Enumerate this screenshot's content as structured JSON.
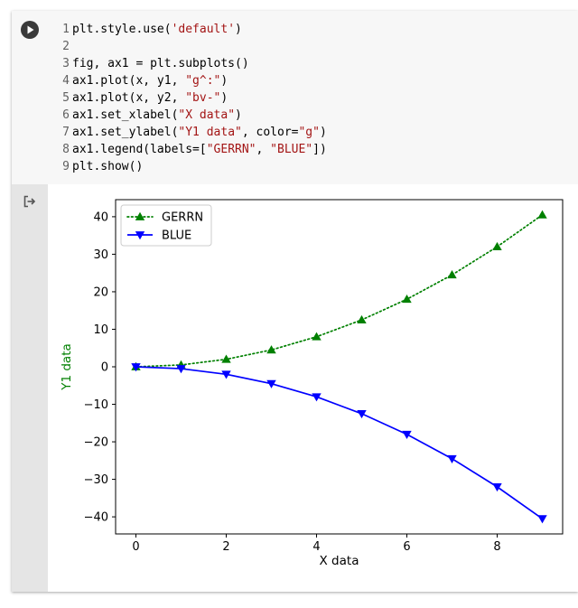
{
  "code": {
    "lines": [
      {
        "num": "1",
        "parts": [
          {
            "t": "plt.style.use(",
            "s": false
          },
          {
            "t": "'default'",
            "s": true
          },
          {
            "t": ")",
            "s": false
          }
        ]
      },
      {
        "num": "2",
        "parts": []
      },
      {
        "num": "3",
        "parts": [
          {
            "t": "fig, ax1 = plt.subplots()",
            "s": false
          }
        ]
      },
      {
        "num": "4",
        "parts": [
          {
            "t": "ax1.plot(x, y1, ",
            "s": false
          },
          {
            "t": "\"g^:\"",
            "s": true
          },
          {
            "t": ")",
            "s": false
          }
        ]
      },
      {
        "num": "5",
        "parts": [
          {
            "t": "ax1.plot(x, y2, ",
            "s": false
          },
          {
            "t": "\"bv-\"",
            "s": true
          },
          {
            "t": ")",
            "s": false
          }
        ]
      },
      {
        "num": "6",
        "parts": [
          {
            "t": "ax1.set_xlabel(",
            "s": false
          },
          {
            "t": "\"X data\"",
            "s": true
          },
          {
            "t": ")",
            "s": false
          }
        ]
      },
      {
        "num": "7",
        "parts": [
          {
            "t": "ax1.set_ylabel(",
            "s": false
          },
          {
            "t": "\"Y1 data\"",
            "s": true
          },
          {
            "t": ", color=",
            "s": false
          },
          {
            "t": "\"g\"",
            "s": true
          },
          {
            "t": ")",
            "s": false
          }
        ]
      },
      {
        "num": "8",
        "parts": [
          {
            "t": "ax1.legend(labels=[",
            "s": false
          },
          {
            "t": "\"GERRN\"",
            "s": true
          },
          {
            "t": ", ",
            "s": false
          },
          {
            "t": "\"BLUE\"",
            "s": true
          },
          {
            "t": "])",
            "s": false
          }
        ]
      },
      {
        "num": "9",
        "parts": [
          {
            "t": "plt.show()",
            "s": false
          }
        ]
      }
    ]
  },
  "colors": {
    "green": "#008000",
    "blue": "#0000ff",
    "string": "#a31515"
  },
  "icons": {
    "run": "play-circle-icon",
    "output": "output-redirect-icon"
  },
  "chart_data": {
    "type": "line",
    "x": [
      0,
      1,
      2,
      3,
      4,
      5,
      6,
      7,
      8,
      9
    ],
    "series": [
      {
        "name": "GERRN",
        "values": [
          0,
          0.5,
          2,
          4.5,
          8,
          12.5,
          18,
          24.5,
          32,
          40.5
        ],
        "color": "#008000",
        "marker": "triangle-up",
        "linestyle": "dotted"
      },
      {
        "name": "BLUE",
        "values": [
          0,
          -0.5,
          -2,
          -4.5,
          -8,
          -12.5,
          -18,
          -24.5,
          -32,
          -40.5
        ],
        "color": "#0000ff",
        "marker": "triangle-down",
        "linestyle": "solid"
      }
    ],
    "xlabel": "X data",
    "ylabel": "Y1 data",
    "ylabel_color": "#008000",
    "xlim": [
      -0.45,
      9.45
    ],
    "ylim": [
      -44.55,
      44.55
    ],
    "xticks": [
      0,
      2,
      4,
      6,
      8
    ],
    "yticks": [
      40,
      30,
      20,
      10,
      0,
      -10,
      -20,
      -30,
      -40
    ],
    "ytick_labels": [
      "40",
      "30",
      "20",
      "10",
      "0",
      "−10",
      "−20",
      "−30",
      "−40"
    ],
    "legend": "upper-left",
    "grid": false
  }
}
